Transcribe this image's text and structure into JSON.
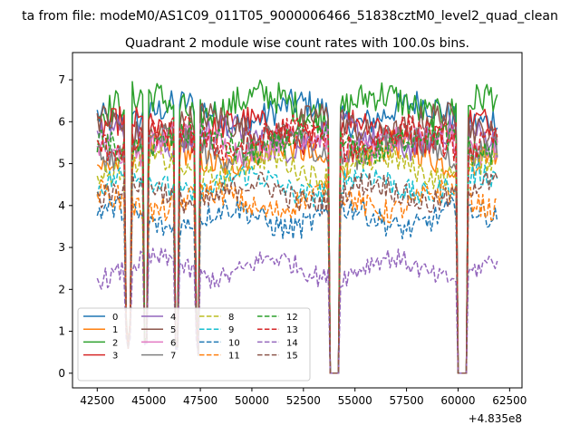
{
  "chart_data": {
    "type": "line",
    "suptitle": "ta from file: modeM0/AS1C09_011T05_9000006466_51838cztM0_level2_quad_clean",
    "title": "Quadrant 2 module wise count rates with 100.0s bins.",
    "xlabel": "",
    "ylabel": "",
    "x_offset_label": "+4.835e8",
    "xlim": [
      41300,
      63100
    ],
    "ylim": [
      -0.35,
      7.65
    ],
    "x_ticks": [
      42500,
      45000,
      47500,
      50000,
      52500,
      55000,
      57500,
      60000,
      62500
    ],
    "x_tick_labels": [
      "42500",
      "45000",
      "47500",
      "50000",
      "52500",
      "55000",
      "57500",
      "60000",
      "62500"
    ],
    "y_ticks": [
      0,
      1,
      2,
      3,
      4,
      5,
      6,
      7
    ],
    "y_tick_labels": [
      "0",
      "1",
      "2",
      "3",
      "4",
      "5",
      "6",
      "7"
    ],
    "x_range": [
      42500,
      61900
    ],
    "bin_width": 100,
    "gaps": [
      {
        "start": 43800,
        "end": 44200,
        "low": 0.6
      },
      {
        "start": 44700,
        "end": 45000,
        "low": 0.6
      },
      {
        "start": 46200,
        "end": 46500,
        "low": 0.5
      },
      {
        "start": 47250,
        "end": 47500,
        "low": 0.4
      },
      {
        "start": 53700,
        "end": 54300,
        "low": 0
      },
      {
        "start": 59900,
        "end": 60500,
        "low": 0
      }
    ],
    "series": [
      {
        "name": "0",
        "level": 6.2,
        "amp": 0.35,
        "color": "#1f77b4",
        "dash": "solid"
      },
      {
        "name": "1",
        "level": 5.2,
        "amp": 0.35,
        "color": "#ff7f0e",
        "dash": "solid"
      },
      {
        "name": "2",
        "level": 6.4,
        "amp": 0.4,
        "color": "#2ca02c",
        "dash": "solid"
      },
      {
        "name": "3",
        "level": 5.8,
        "amp": 0.35,
        "color": "#d62728",
        "dash": "solid"
      },
      {
        "name": "4",
        "level": 5.6,
        "amp": 0.35,
        "color": "#9467bd",
        "dash": "solid"
      },
      {
        "name": "5",
        "level": 5.9,
        "amp": 0.35,
        "color": "#8c564b",
        "dash": "solid"
      },
      {
        "name": "6",
        "level": 5.5,
        "amp": 0.35,
        "color": "#e377c2",
        "dash": "solid"
      },
      {
        "name": "7",
        "level": 5.4,
        "amp": 0.35,
        "color": "#7f7f7f",
        "dash": "solid"
      },
      {
        "name": "8",
        "level": 4.9,
        "amp": 0.3,
        "color": "#bcbd22",
        "dash": "dashed"
      },
      {
        "name": "9",
        "level": 4.5,
        "amp": 0.3,
        "color": "#17becf",
        "dash": "dashed"
      },
      {
        "name": "10",
        "level": 3.7,
        "amp": 0.3,
        "color": "#1f77b4",
        "dash": "dashed"
      },
      {
        "name": "11",
        "level": 4.1,
        "amp": 0.3,
        "color": "#ff7f0e",
        "dash": "dashed"
      },
      {
        "name": "12",
        "level": 5.5,
        "amp": 0.35,
        "color": "#2ca02c",
        "dash": "dashed"
      },
      {
        "name": "13",
        "level": 5.6,
        "amp": 0.35,
        "color": "#d62728",
        "dash": "dashed"
      },
      {
        "name": "14",
        "level": 2.5,
        "amp": 0.25,
        "color": "#9467bd",
        "dash": "dashed"
      },
      {
        "name": "15",
        "level": 4.3,
        "amp": 0.3,
        "color": "#8c564b",
        "dash": "dashed"
      }
    ],
    "legend": {
      "location": "lower-left",
      "columns": 4
    }
  }
}
